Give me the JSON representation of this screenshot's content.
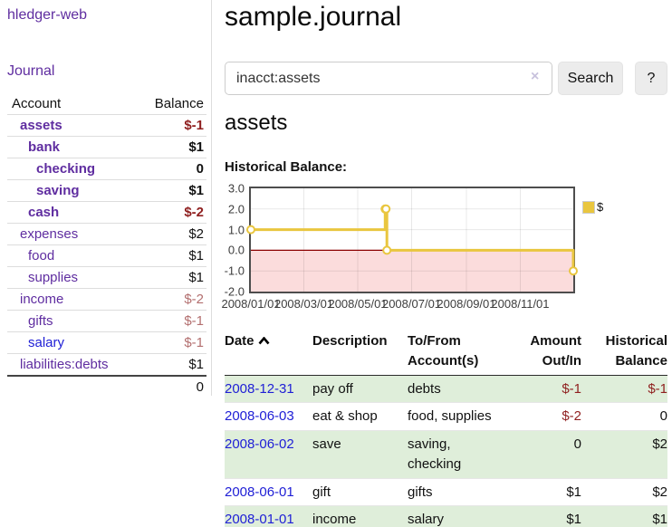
{
  "colors": {
    "purple_link": "#5f2da0",
    "blue_link": "#2020d6",
    "negative_strong": "#8f1f1f",
    "negative_muted": "#b36f6f",
    "row_green": "#dfeeda",
    "chart_pink": "#fbdcdc",
    "series_yellow": "#e9c63f",
    "zero_line": "#8b0000"
  },
  "sidebar": {
    "app_title": "hledger-web",
    "nav_journal": "Journal",
    "accounts_header": {
      "account": "Account",
      "balance": "Balance"
    },
    "accounts": [
      {
        "name": "assets",
        "balance": "$-1",
        "level": 1,
        "bold": true,
        "name_style": "purple",
        "balance_style": "neg-strong"
      },
      {
        "name": "bank",
        "balance": "$1",
        "level": 2,
        "bold": true,
        "name_style": "purple",
        "balance_style": "normal"
      },
      {
        "name": "checking",
        "balance": "0",
        "level": 3,
        "bold": true,
        "name_style": "purple",
        "balance_style": "normal"
      },
      {
        "name": "saving",
        "balance": "$1",
        "level": 3,
        "bold": true,
        "name_style": "purple",
        "balance_style": "normal"
      },
      {
        "name": "cash",
        "balance": "$-2",
        "level": 2,
        "bold": true,
        "name_style": "purple",
        "balance_style": "neg-strong"
      },
      {
        "name": "expenses",
        "balance": "$2",
        "level": 1,
        "bold": false,
        "name_style": "purple",
        "balance_style": "normal"
      },
      {
        "name": "food",
        "balance": "$1",
        "level": 2,
        "bold": false,
        "name_style": "purple",
        "balance_style": "normal"
      },
      {
        "name": "supplies",
        "balance": "$1",
        "level": 2,
        "bold": false,
        "name_style": "purple",
        "balance_style": "normal"
      },
      {
        "name": "income",
        "balance": "$-2",
        "level": 1,
        "bold": false,
        "name_style": "purple",
        "balance_style": "neg-muted"
      },
      {
        "name": "gifts",
        "balance": "$-1",
        "level": 2,
        "bold": false,
        "name_style": "purple",
        "balance_style": "neg-muted"
      },
      {
        "name": "salary",
        "balance": "$-1",
        "level": 2,
        "bold": false,
        "name_style": "blue",
        "balance_style": "neg-muted"
      },
      {
        "name": "liabilities:debts",
        "balance": "$1",
        "level": 1,
        "bold": false,
        "name_style": "purple",
        "balance_style": "normal"
      }
    ],
    "total": "0"
  },
  "main": {
    "title": "sample.journal",
    "search": {
      "value": "inacct:assets",
      "clear_icon": "×",
      "button": "Search",
      "help_button": "?"
    },
    "account_heading": "assets",
    "chart_label": "Historical Balance:"
  },
  "chart_data": {
    "type": "line",
    "title": "Historical Balance",
    "style": "step-after with point markers",
    "x_range": [
      "2008-01-01",
      "2008-12-31"
    ],
    "ylim": [
      -2,
      3
    ],
    "grid": true,
    "negative_region_shaded": true,
    "legend": {
      "label": "$",
      "position": "top-right"
    },
    "y_ticks": [
      {
        "label": "3.0",
        "value": 3
      },
      {
        "label": "2.0",
        "value": 2
      },
      {
        "label": "1.0",
        "value": 1
      },
      {
        "label": "0.0",
        "value": 0
      },
      {
        "label": "-1.0",
        "value": -1
      },
      {
        "label": "-2.0",
        "value": -2
      }
    ],
    "x_ticks": [
      {
        "label": "2008/01/01",
        "date": "2008-01-01"
      },
      {
        "label": "2008/03/01",
        "date": "2008-03-01"
      },
      {
        "label": "2008/05/01",
        "date": "2008-05-01"
      },
      {
        "label": "2008/07/01",
        "date": "2008-07-01"
      },
      {
        "label": "2008/09/01",
        "date": "2008-09-01"
      },
      {
        "label": "2008/11/01",
        "date": "2008-11-01"
      }
    ],
    "series": [
      {
        "name": "$",
        "points": [
          {
            "date": "2008-01-01",
            "value": 1
          },
          {
            "date": "2008-06-01",
            "value": 2
          },
          {
            "date": "2008-06-02",
            "value": 2
          },
          {
            "date": "2008-06-03",
            "value": 0
          },
          {
            "date": "2008-12-31",
            "value": -1
          }
        ]
      }
    ]
  },
  "register": {
    "headers": {
      "date": "Date",
      "description": "Description",
      "tofrom": "To/From Account(s)",
      "amount": "Amount Out/In",
      "historical": "Historical Balance"
    },
    "rows": [
      {
        "date": "2008-12-31",
        "description": "pay off",
        "accounts": "debts",
        "amount": "$-1",
        "amount_neg": true,
        "balance": "$-1",
        "balance_neg": true,
        "shaded": true
      },
      {
        "date": "2008-06-03",
        "description": "eat & shop",
        "accounts": "food, supplies",
        "amount": "$-2",
        "amount_neg": true,
        "balance": "0",
        "balance_neg": false,
        "shaded": false
      },
      {
        "date": "2008-06-02",
        "description": "save",
        "accounts": "saving,\nchecking",
        "amount": "0",
        "amount_neg": false,
        "balance": "$2",
        "balance_neg": false,
        "shaded": true
      },
      {
        "date": "2008-06-01",
        "description": "gift",
        "accounts": "gifts",
        "amount": "$1",
        "amount_neg": false,
        "balance": "$2",
        "balance_neg": false,
        "shaded": false
      },
      {
        "date": "2008-01-01",
        "description": "income",
        "accounts": "salary",
        "amount": "$1",
        "amount_neg": false,
        "balance": "$1",
        "balance_neg": false,
        "shaded": true
      }
    ]
  }
}
